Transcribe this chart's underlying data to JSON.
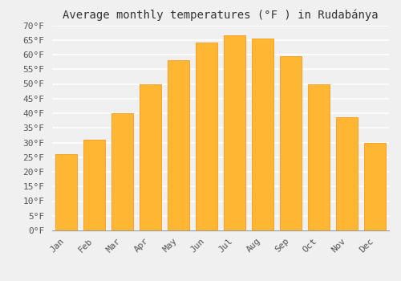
{
  "title": "Average monthly temperatures (°F ) in Rudabánya",
  "months": [
    "Jan",
    "Feb",
    "Mar",
    "Apr",
    "May",
    "Jun",
    "Jul",
    "Aug",
    "Sep",
    "Oct",
    "Nov",
    "Dec"
  ],
  "values": [
    26,
    31,
    40,
    50,
    58,
    64,
    66.5,
    65.5,
    59.5,
    50,
    38.5,
    30
  ],
  "bar_color": "#FFA500",
  "bar_color_light": "#FFB733",
  "bar_edge_color": "#FF8C00",
  "ylim": [
    0,
    70
  ],
  "yticks": [
    0,
    5,
    10,
    15,
    20,
    25,
    30,
    35,
    40,
    45,
    50,
    55,
    60,
    65,
    70
  ],
  "background_color": "#f0f0f0",
  "grid_color": "#ffffff",
  "title_fontsize": 10,
  "tick_fontsize": 8,
  "font_family": "monospace"
}
